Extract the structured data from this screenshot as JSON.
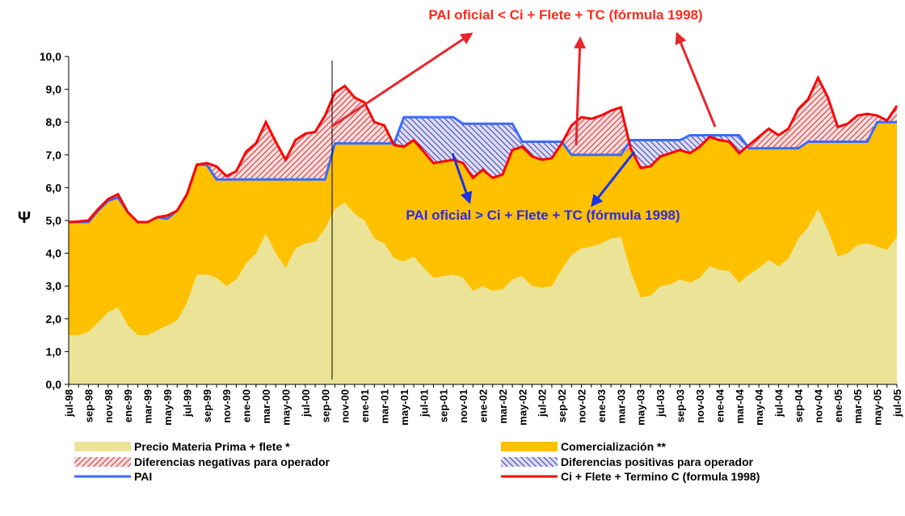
{
  "chart_data": {
    "type": "area",
    "y_label": "Ψ",
    "annotations": [
      "PAI oficial < Ci + Flete + TC (fórmula 1998)",
      "PAI oficial > Ci + Flete + TC (fórmula 1998)"
    ],
    "categories": [
      "jul-98",
      null,
      "sep-98",
      null,
      "nov-98",
      null,
      "ene-99",
      null,
      "mar-99",
      null,
      "may-99",
      null,
      "jul-99",
      null,
      "sep-99",
      null,
      "nov-99",
      null,
      "ene-00",
      null,
      "mar-00",
      null,
      "may-00",
      null,
      "jul-00",
      null,
      "sep-00",
      null,
      "nov-00",
      null,
      "ene-01",
      null,
      "mar-01",
      null,
      "may-01",
      null,
      "jul-01",
      null,
      "sep-01",
      null,
      "nov-01",
      null,
      "ene-02",
      null,
      "mar-02",
      null,
      "may-02",
      null,
      "jul-02",
      null,
      "sep-02",
      null,
      "nov-02",
      null,
      "ene-03",
      null,
      "mar-03",
      null,
      "may-03",
      null,
      "jul-03",
      null,
      "sep-03",
      null,
      "nov-03",
      null,
      "ene-04",
      null,
      "mar-04",
      null,
      "may-04",
      null,
      "jul-04",
      null,
      "sep-04",
      null,
      "nov-04",
      null,
      "ene-05",
      null,
      "mar-05",
      null,
      "may-05",
      null,
      "jul-05"
    ],
    "ylim": [
      0,
      10
    ],
    "yticks": [
      {
        "value": 0,
        "label": "0,0"
      },
      {
        "value": 1,
        "label": "1,0"
      },
      {
        "value": 2,
        "label": "2,0"
      },
      {
        "value": 3,
        "label": "3,0"
      },
      {
        "value": 4,
        "label": "4,0"
      },
      {
        "value": 5,
        "label": "5,0"
      },
      {
        "value": 6,
        "label": "6,0"
      },
      {
        "value": 7,
        "label": "7,0"
      },
      {
        "value": 8,
        "label": "8,0"
      },
      {
        "value": 9,
        "label": "9,0"
      },
      {
        "value": 10,
        "label": "10,0"
      }
    ],
    "series": [
      {
        "name": "Precio Materia Prima + flete *",
        "color": "#ebe497",
        "values": [
          1.5,
          1.5,
          1.6,
          1.9,
          2.2,
          2.35,
          1.8,
          1.5,
          1.5,
          1.65,
          1.8,
          1.95,
          2.5,
          3.35,
          3.35,
          3.25,
          3.0,
          3.2,
          3.7,
          4.0,
          4.6,
          4.0,
          3.55,
          4.15,
          4.3,
          4.35,
          4.75,
          5.35,
          5.55,
          5.2,
          5.0,
          4.45,
          4.3,
          3.85,
          3.75,
          3.9,
          3.55,
          3.25,
          3.3,
          3.35,
          3.25,
          2.85,
          3.0,
          2.85,
          2.9,
          3.2,
          3.3,
          3.0,
          2.95,
          3.0,
          3.5,
          3.95,
          4.15,
          4.2,
          4.3,
          4.45,
          4.5,
          3.45,
          2.65,
          2.7,
          3.0,
          3.05,
          3.2,
          3.1,
          3.25,
          3.6,
          3.5,
          3.45,
          3.1,
          3.35,
          3.55,
          3.8,
          3.6,
          3.85,
          4.45,
          4.8,
          5.35,
          4.7,
          3.9,
          4.0,
          4.25,
          4.3,
          4.2,
          4.1,
          4.5
        ]
      },
      {
        "name": "Comercialización **",
        "color": "#ffc000"
      },
      {
        "name": "Diferencias negativas para operador",
        "color": "#cc3333"
      },
      {
        "name": "Diferencias positivas para operador",
        "color": "#3b3bb0"
      },
      {
        "name": "PAI",
        "color": "#3a6bff",
        "values": [
          4.95,
          4.95,
          4.95,
          5.3,
          5.6,
          5.7,
          5.25,
          4.95,
          4.95,
          5.1,
          5.05,
          5.3,
          5.8,
          6.7,
          6.7,
          6.25,
          6.25,
          6.25,
          6.25,
          6.25,
          6.25,
          6.25,
          6.25,
          6.25,
          6.25,
          6.25,
          6.25,
          7.35,
          7.35,
          7.35,
          7.35,
          7.35,
          7.35,
          7.35,
          8.15,
          8.15,
          8.15,
          8.15,
          8.15,
          8.15,
          7.95,
          7.95,
          7.95,
          7.95,
          7.95,
          7.95,
          7.4,
          7.4,
          7.4,
          7.4,
          7.4,
          7.0,
          7.0,
          7.0,
          7.0,
          7.0,
          7.0,
          7.45,
          7.45,
          7.45,
          7.45,
          7.45,
          7.45,
          7.6,
          7.6,
          7.6,
          7.6,
          7.6,
          7.6,
          7.2,
          7.2,
          7.2,
          7.2,
          7.2,
          7.2,
          7.4,
          7.4,
          7.4,
          7.4,
          7.4,
          7.4,
          7.4,
          8.0,
          8.0,
          8.0
        ]
      },
      {
        "name": "Ci + Flete + Termino C (formula 1998)",
        "color": "#ff0000",
        "values": [
          4.95,
          4.97,
          5.0,
          5.35,
          5.65,
          5.8,
          5.25,
          4.95,
          4.95,
          5.1,
          5.15,
          5.3,
          5.8,
          6.7,
          6.75,
          6.65,
          6.35,
          6.5,
          7.1,
          7.35,
          8.0,
          7.4,
          6.85,
          7.45,
          7.65,
          7.7,
          8.2,
          8.9,
          9.1,
          8.75,
          8.6,
          8.0,
          7.9,
          7.3,
          7.25,
          7.45,
          7.1,
          6.75,
          6.8,
          6.85,
          6.75,
          6.3,
          6.55,
          6.3,
          6.4,
          7.15,
          7.25,
          6.95,
          6.85,
          6.9,
          7.35,
          7.9,
          8.15,
          8.1,
          8.2,
          8.35,
          8.45,
          7.2,
          6.6,
          6.65,
          6.95,
          7.05,
          7.15,
          7.05,
          7.25,
          7.55,
          7.45,
          7.4,
          7.05,
          7.3,
          7.55,
          7.8,
          7.6,
          7.8,
          8.4,
          8.7,
          9.35,
          8.75,
          7.85,
          7.95,
          8.2,
          8.25,
          8.2,
          8.05,
          8.5
        ]
      }
    ]
  }
}
